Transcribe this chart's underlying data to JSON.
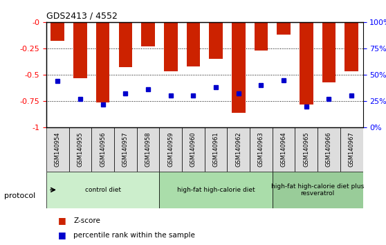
{
  "title": "GDS2413 / 4552",
  "samples": [
    "GSM140954",
    "GSM140955",
    "GSM140956",
    "GSM140957",
    "GSM140958",
    "GSM140959",
    "GSM140960",
    "GSM140961",
    "GSM140962",
    "GSM140963",
    "GSM140964",
    "GSM140965",
    "GSM140966",
    "GSM140967"
  ],
  "zscore": [
    -0.18,
    -0.53,
    -0.76,
    -0.43,
    -0.23,
    -0.47,
    -0.42,
    -0.35,
    -0.86,
    -0.27,
    -0.12,
    -0.78,
    -0.57,
    -0.47
  ],
  "percentile": [
    0.44,
    0.27,
    0.22,
    0.32,
    0.36,
    0.3,
    0.3,
    0.38,
    0.32,
    0.4,
    0.45,
    0.2,
    0.27,
    0.3
  ],
  "bar_color": "#cc2200",
  "dot_color": "#0000cc",
  "ylim_left": [
    -1.0,
    0.0
  ],
  "ylim_right": [
    0,
    100
  ],
  "yticks_left": [
    -1.0,
    -0.75,
    -0.5,
    -0.25,
    0.0
  ],
  "ytick_labels_left": [
    "-1",
    "-0.75",
    "-0.5",
    "-0.25",
    "-0"
  ],
  "yticks_right": [
    0,
    25,
    50,
    75,
    100
  ],
  "ytick_labels_right": [
    "0%",
    "25%",
    "50%",
    "75%",
    "100%"
  ],
  "groups": [
    {
      "label": "control diet",
      "start": 0,
      "end": 4,
      "color": "#cceecc"
    },
    {
      "label": "high-fat high-calorie diet",
      "start": 5,
      "end": 9,
      "color": "#aaddaa"
    },
    {
      "label": "high-fat high-calorie diet plus\nresveratrol",
      "start": 10,
      "end": 13,
      "color": "#99cc99"
    }
  ],
  "protocol_label": "protocol",
  "legend_zscore": "Z-score",
  "legend_percentile": "percentile rank within the sample",
  "bar_width": 0.6,
  "grid_color": "#000000",
  "background_color": "#ffffff",
  "label_area_color": "#dddddd"
}
